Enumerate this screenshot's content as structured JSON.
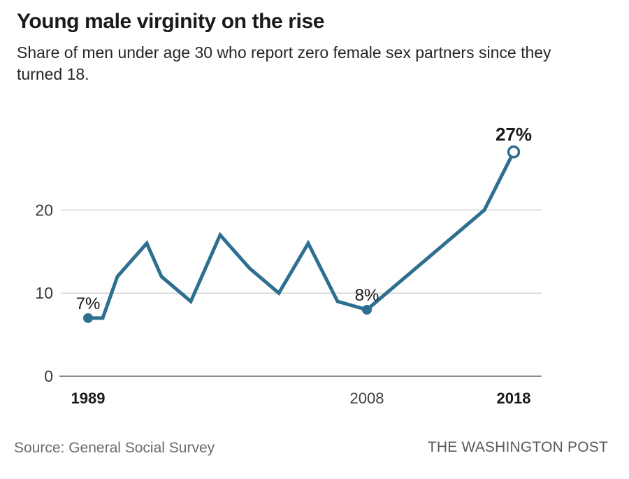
{
  "header": {
    "title": "Young male virginity on the rise",
    "subtitle": "Share of men under age 30 who report zero female sex partners since they turned 18."
  },
  "footer": {
    "source": "Source: General Social Survey",
    "publisher": "THE WASHINGTON POST"
  },
  "chart_data": {
    "type": "line",
    "title": "Young male virginity on the rise",
    "xlabel": "",
    "ylabel": "",
    "unit": "%",
    "x": [
      1989,
      1990,
      1991,
      1993,
      1994,
      1996,
      1998,
      2000,
      2002,
      2004,
      2006,
      2008,
      2010,
      2012,
      2014,
      2016,
      2018
    ],
    "values": [
      7,
      7,
      12,
      16,
      12,
      9,
      17,
      13,
      10,
      16,
      9,
      8,
      11,
      14,
      17,
      20,
      27
    ],
    "xlim": [
      1989,
      2018
    ],
    "ylim": [
      0,
      30
    ],
    "grid": true,
    "legend_position": "none",
    "y_ticks": [
      {
        "value": 0,
        "label": "0"
      },
      {
        "value": 10,
        "label": "10"
      },
      {
        "value": 20,
        "label": "20"
      }
    ],
    "x_ticks": [
      {
        "year": 1989,
        "label": "1989",
        "bold": true
      },
      {
        "year": 2008,
        "label": "2008",
        "bold": false
      },
      {
        "year": 2018,
        "label": "2018",
        "bold": true
      }
    ],
    "markers": [
      {
        "year": 1989,
        "value": 7,
        "label": "7%",
        "style": "filled",
        "bold": false
      },
      {
        "year": 2008,
        "value": 8,
        "label": "8%",
        "style": "filled",
        "bold": false
      },
      {
        "year": 2018,
        "value": 27,
        "label": "27%",
        "style": "open",
        "bold": true
      }
    ],
    "colors": {
      "line": "#2E6F90",
      "grid": "#D3D3D3",
      "axis": "#8C8C8C",
      "tick_text": "#3A3A3A",
      "label_text": "#1A1A1A"
    }
  }
}
